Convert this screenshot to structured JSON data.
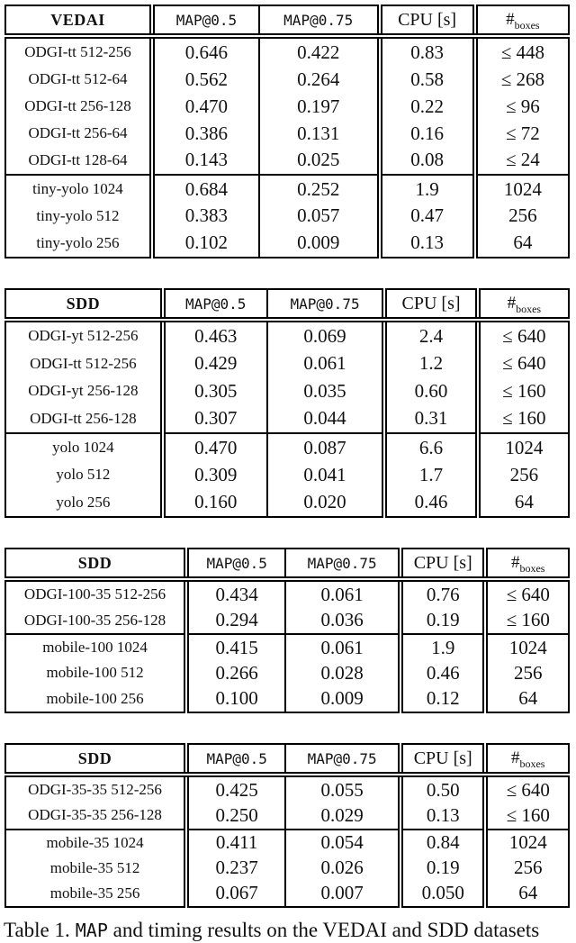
{
  "caption": {
    "prefix": "Table 1.",
    "map": "MAP",
    "suffix": " and timing results on the VEDAI and SDD datasets"
  },
  "tables": [
    {
      "title": "VEDAI",
      "headers": {
        "map05": "MAP@0.5",
        "map075": "MAP@0.75",
        "cpu": "CPU [s]",
        "boxes_symbol": "#",
        "boxes_subscript": "boxes"
      },
      "groups": [
        [
          {
            "label": "ODGI-tt 512-256",
            "map05": "0.646",
            "map075": "0.422",
            "cpu": "0.83",
            "boxes": "≤ 448"
          },
          {
            "label": "ODGI-tt 512-64",
            "map05": "0.562",
            "map075": "0.264",
            "cpu": "0.58",
            "boxes": "≤ 268"
          },
          {
            "label": "ODGI-tt 256-128",
            "map05": "0.470",
            "map075": "0.197",
            "cpu": "0.22",
            "boxes": "≤ 96"
          },
          {
            "label": "ODGI-tt 256-64",
            "map05": "0.386",
            "map075": "0.131",
            "cpu": "0.16",
            "boxes": "≤ 72"
          },
          {
            "label": "ODGI-tt 128-64",
            "map05": "0.143",
            "map075": "0.025",
            "cpu": "0.08",
            "boxes": "≤ 24"
          }
        ],
        [
          {
            "label": "tiny-yolo 1024",
            "map05": "0.684",
            "map075": "0.252",
            "cpu": "1.9",
            "boxes": "1024"
          },
          {
            "label": "tiny-yolo 512",
            "map05": "0.383",
            "map075": "0.057",
            "cpu": "0.47",
            "boxes": "256"
          },
          {
            "label": "tiny-yolo 256",
            "map05": "0.102",
            "map075": "0.009",
            "cpu": "0.13",
            "boxes": "64"
          }
        ]
      ]
    },
    {
      "title": "SDD",
      "headers": {
        "map05": "MAP@0.5",
        "map075": "MAP@0.75",
        "cpu": "CPU [s]",
        "boxes_symbol": "#",
        "boxes_subscript": "boxes"
      },
      "groups": [
        [
          {
            "label": "ODGI-yt 512-256",
            "map05": "0.463",
            "map075": "0.069",
            "cpu": "2.4",
            "boxes": "≤ 640"
          },
          {
            "label": "ODGI-tt 512-256",
            "map05": "0.429",
            "map075": "0.061",
            "cpu": "1.2",
            "boxes": "≤ 640"
          },
          {
            "label": "ODGI-yt 256-128",
            "map05": "0.305",
            "map075": "0.035",
            "cpu": "0.60",
            "boxes": "≤ 160"
          },
          {
            "label": "ODGI-tt 256-128",
            "map05": "0.307",
            "map075": "0.044",
            "cpu": "0.31",
            "boxes": "≤ 160"
          }
        ],
        [
          {
            "label": "yolo 1024",
            "map05": "0.470",
            "map075": "0.087",
            "cpu": "6.6",
            "boxes": "1024"
          },
          {
            "label": "yolo 512",
            "map05": "0.309",
            "map075": "0.041",
            "cpu": "1.7",
            "boxes": "256"
          },
          {
            "label": "yolo 256",
            "map05": "0.160",
            "map075": "0.020",
            "cpu": "0.46",
            "boxes": "64"
          }
        ]
      ]
    },
    {
      "title": "SDD",
      "headers": {
        "map05": "MAP@0.5",
        "map075": "MAP@0.75",
        "cpu": "CPU [s]",
        "boxes_symbol": "#",
        "boxes_subscript": "boxes"
      },
      "groups": [
        [
          {
            "label": "ODGI-100-35 512-256",
            "map05": "0.434",
            "map075": "0.061",
            "cpu": "0.76",
            "boxes": "≤ 640"
          },
          {
            "label": "ODGI-100-35 256-128",
            "map05": "0.294",
            "map075": "0.036",
            "cpu": "0.19",
            "boxes": "≤ 160"
          }
        ],
        [
          {
            "label": "mobile-100 1024",
            "map05": "0.415",
            "map075": "0.061",
            "cpu": "1.9",
            "boxes": "1024"
          },
          {
            "label": "mobile-100 512",
            "map05": "0.266",
            "map075": "0.028",
            "cpu": "0.46",
            "boxes": "256"
          },
          {
            "label": "mobile-100 256",
            "map05": "0.100",
            "map075": "0.009",
            "cpu": "0.12",
            "boxes": "64"
          }
        ]
      ]
    },
    {
      "title": "SDD",
      "headers": {
        "map05": "MAP@0.5",
        "map075": "MAP@0.75",
        "cpu": "CPU [s]",
        "boxes_symbol": "#",
        "boxes_subscript": "boxes"
      },
      "groups": [
        [
          {
            "label": "ODGI-35-35 512-256",
            "map05": "0.425",
            "map075": "0.055",
            "cpu": "0.50",
            "boxes": "≤ 640"
          },
          {
            "label": "ODGI-35-35 256-128",
            "map05": "0.250",
            "map075": "0.029",
            "cpu": "0.13",
            "boxes": "≤ 160"
          }
        ],
        [
          {
            "label": "mobile-35 1024",
            "map05": "0.411",
            "map075": "0.054",
            "cpu": "0.84",
            "boxes": "1024"
          },
          {
            "label": "mobile-35 512",
            "map05": "0.237",
            "map075": "0.026",
            "cpu": "0.19",
            "boxes": "256"
          },
          {
            "label": "mobile-35 256",
            "map05": "0.067",
            "map075": "0.007",
            "cpu": "0.050",
            "boxes": "64"
          }
        ]
      ]
    }
  ]
}
